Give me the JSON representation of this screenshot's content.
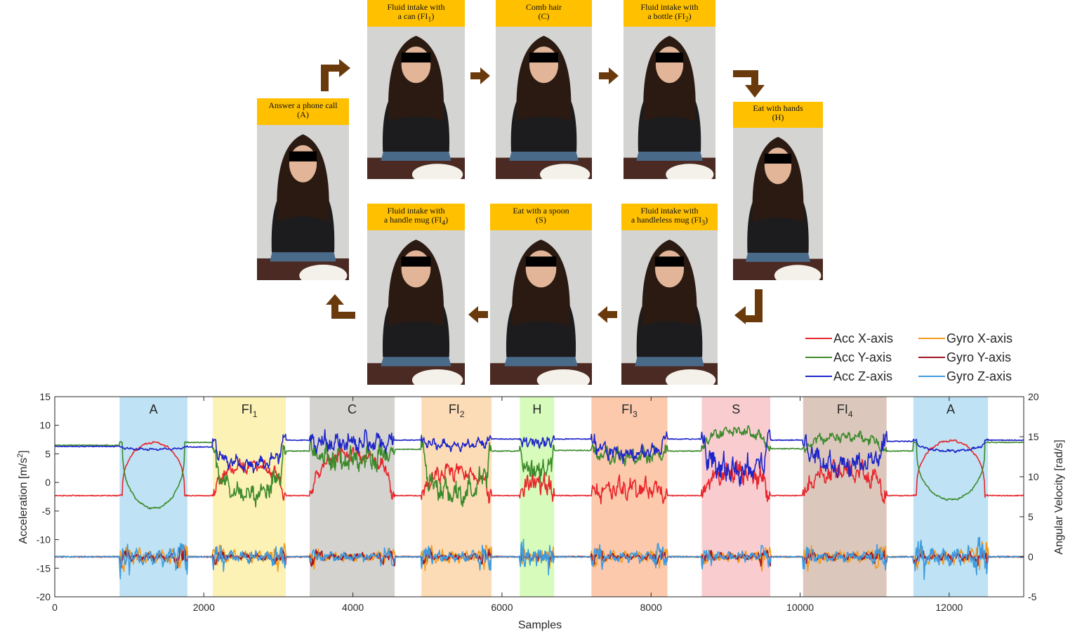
{
  "figure": {
    "panels": [
      {
        "id": "A",
        "label_line1": "Answer a phone call",
        "label_line2": "(A)",
        "sub": ""
      },
      {
        "id": "FI1",
        "label_line1": "Fluid intake with",
        "label_line2": "a can (FI",
        "sub": "1"
      },
      {
        "id": "C",
        "label_line1": "Comb hair",
        "label_line2": "(C)",
        "sub": ""
      },
      {
        "id": "FI2",
        "label_line1": "Fluid intake with",
        "label_line2": "a bottle (FI",
        "sub": "2"
      },
      {
        "id": "H",
        "label_line1": "Eat with hands",
        "label_line2": "(H)",
        "sub": ""
      },
      {
        "id": "FI3",
        "label_line1": "Fluid intake with",
        "label_line2": "a handleless mug (FI",
        "sub": "3"
      },
      {
        "id": "S",
        "label_line1": "Eat with a spoon",
        "label_line2": "(S)",
        "sub": ""
      },
      {
        "id": "FI4",
        "label_line1": "Fluid intake with",
        "label_line2": "a handle mug (FI",
        "sub": "4"
      }
    ],
    "colors": {
      "header": "#ffc000",
      "arrow": "#6b3a0c",
      "photo_wall": "#d4d4d2",
      "shirt": "#1c1c1e",
      "hair": "#2a1a12",
      "skin": "#e2b598",
      "jeans": "#4a6a8a",
      "table": "#4a2a22"
    }
  },
  "chart_data": {
    "type": "line",
    "xlabel": "Samples",
    "ylabel": "Acceleration [m/s",
    "ylabel_sup": "2",
    "ylabel_end": "]",
    "y2label": "Angular Velocity [rad/s]",
    "xlim": [
      0,
      13000
    ],
    "ylim": [
      -20,
      15
    ],
    "y2lim": [
      -5,
      20
    ],
    "xticks": [
      0,
      2000,
      4000,
      6000,
      8000,
      10000,
      12000
    ],
    "yticks": [
      -20,
      -15,
      -10,
      -5,
      0,
      5,
      10,
      15
    ],
    "y2ticks": [
      -5,
      0,
      5,
      10,
      15,
      20
    ],
    "grid": false,
    "legend_position": "top-right",
    "activity_regions": [
      {
        "label": "A",
        "sub": "",
        "x_start": 870,
        "x_end": 1780,
        "color": "#bfe2f4"
      },
      {
        "label": "FI",
        "sub": "1",
        "x_start": 2120,
        "x_end": 3100,
        "color": "#fdf2b6"
      },
      {
        "label": "C",
        "sub": "",
        "x_start": 3420,
        "x_end": 4560,
        "color": "#d5d3cf"
      },
      {
        "label": "FI",
        "sub": "2",
        "x_start": 4920,
        "x_end": 5860,
        "color": "#fcdcb6"
      },
      {
        "label": "H",
        "sub": "",
        "x_start": 6240,
        "x_end": 6700,
        "color": "#d7fbbb"
      },
      {
        "label": "FI",
        "sub": "3",
        "x_start": 7200,
        "x_end": 8220,
        "color": "#fcc9ad"
      },
      {
        "label": "S",
        "sub": "",
        "x_start": 8680,
        "x_end": 9600,
        "color": "#f9cdd0"
      },
      {
        "label": "FI",
        "sub": "4",
        "x_start": 10040,
        "x_end": 11160,
        "color": "#dcc7bc"
      },
      {
        "label": "A",
        "sub": "",
        "x_start": 11520,
        "x_end": 12520,
        "color": "#bfe2f4"
      }
    ],
    "series": [
      {
        "name": "Acc X-axis",
        "color": "#e8252b",
        "axis": "left",
        "baseline": -2.3,
        "segments": [
          [
            -2.3,
            7.0,
            0.4,
            1.5
          ],
          [
            -2.3,
            3.0,
            1.0,
            4.0
          ],
          [
            -2.3,
            5.0,
            1.0,
            4.0
          ],
          [
            -2.3,
            2.0,
            1.0,
            5.0
          ],
          [
            -2.3,
            0.0,
            2.0,
            3.0
          ],
          [
            -2.3,
            -1.0,
            2.0,
            3.0
          ],
          [
            -2.3,
            2.0,
            2.0,
            3.0
          ],
          [
            -2.3,
            2.0,
            2.0,
            3.0
          ],
          [
            -2.3,
            7.3,
            0.5,
            1.5
          ]
        ]
      },
      {
        "name": "Acc Y-axis",
        "color": "#3c8a2c",
        "axis": "left",
        "baseline": 6.5,
        "segments": [
          [
            7.0,
            -4.5,
            0.4,
            1.5
          ],
          [
            5.5,
            -2.0,
            1.5,
            4.0
          ],
          [
            5.8,
            4.0,
            2.0,
            4.0
          ],
          [
            5.5,
            -2.0,
            1.5,
            5.0
          ],
          [
            5.6,
            2.0,
            2.0,
            3.0
          ],
          [
            5.5,
            4.5,
            1.5,
            3.0
          ],
          [
            5.9,
            9.0,
            1.0,
            3.0
          ],
          [
            5.5,
            8.0,
            1.0,
            3.0
          ],
          [
            7.0,
            -3.0,
            0.4,
            1.5
          ]
        ]
      },
      {
        "name": "Acc Z-axis",
        "color": "#1e26c8",
        "axis": "left",
        "baseline": 6.3,
        "segments": [
          [
            6.2,
            5.8,
            0.4,
            1.5
          ],
          [
            7.4,
            3.0,
            1.0,
            4.0
          ],
          [
            7.4,
            7.0,
            1.5,
            4.0
          ],
          [
            7.6,
            6.5,
            1.0,
            3.0
          ],
          [
            7.6,
            7.0,
            1.0,
            3.0
          ],
          [
            7.6,
            5.0,
            1.5,
            3.0
          ],
          [
            7.4,
            2.0,
            2.0,
            4.0
          ],
          [
            7.2,
            3.0,
            2.0,
            3.0
          ],
          [
            7.4,
            5.5,
            0.5,
            1.5
          ]
        ]
      },
      {
        "name": "Gyro X-axis",
        "color": "#f39a1c",
        "axis": "right",
        "baseline": 0.0,
        "segments": [
          [
            0,
            0,
            0.6,
            2.5
          ],
          [
            0,
            0,
            0.8,
            2.0
          ],
          [
            0,
            0,
            0.6,
            1.5
          ],
          [
            0,
            0,
            0.8,
            2.0
          ],
          [
            0,
            0,
            0.6,
            1.8
          ],
          [
            0,
            0,
            0.6,
            1.8
          ],
          [
            0,
            0,
            0.7,
            1.8
          ],
          [
            0,
            0,
            0.6,
            2.0
          ],
          [
            0,
            0,
            0.7,
            2.5
          ]
        ]
      },
      {
        "name": "Gyro Y-axis",
        "color": "#a2141e",
        "axis": "right",
        "baseline": 0.0,
        "segments": [
          [
            0,
            0,
            0.5,
            1.5
          ],
          [
            0,
            0,
            0.5,
            1.3
          ],
          [
            0,
            0,
            0.5,
            1.3
          ],
          [
            0,
            0,
            0.4,
            1.2
          ],
          [
            0,
            0,
            0.4,
            1.2
          ],
          [
            0,
            0,
            0.4,
            1.2
          ],
          [
            0,
            0,
            0.5,
            1.2
          ],
          [
            0,
            0,
            0.4,
            1.3
          ],
          [
            0,
            0,
            0.5,
            1.4
          ]
        ]
      },
      {
        "name": "Gyro Z-axis",
        "color": "#3d9be0",
        "axis": "right",
        "baseline": 0.0,
        "segments": [
          [
            0,
            0,
            0.7,
            3.0
          ],
          [
            0,
            0,
            0.6,
            2.0
          ],
          [
            0,
            0,
            0.6,
            1.5
          ],
          [
            0,
            0,
            0.7,
            2.0
          ],
          [
            0,
            0,
            0.7,
            3.0
          ],
          [
            0,
            0,
            0.7,
            2.0
          ],
          [
            0,
            0,
            0.6,
            1.8
          ],
          [
            0,
            0,
            0.6,
            1.8
          ],
          [
            0,
            0,
            0.8,
            3.0
          ]
        ]
      }
    ]
  }
}
